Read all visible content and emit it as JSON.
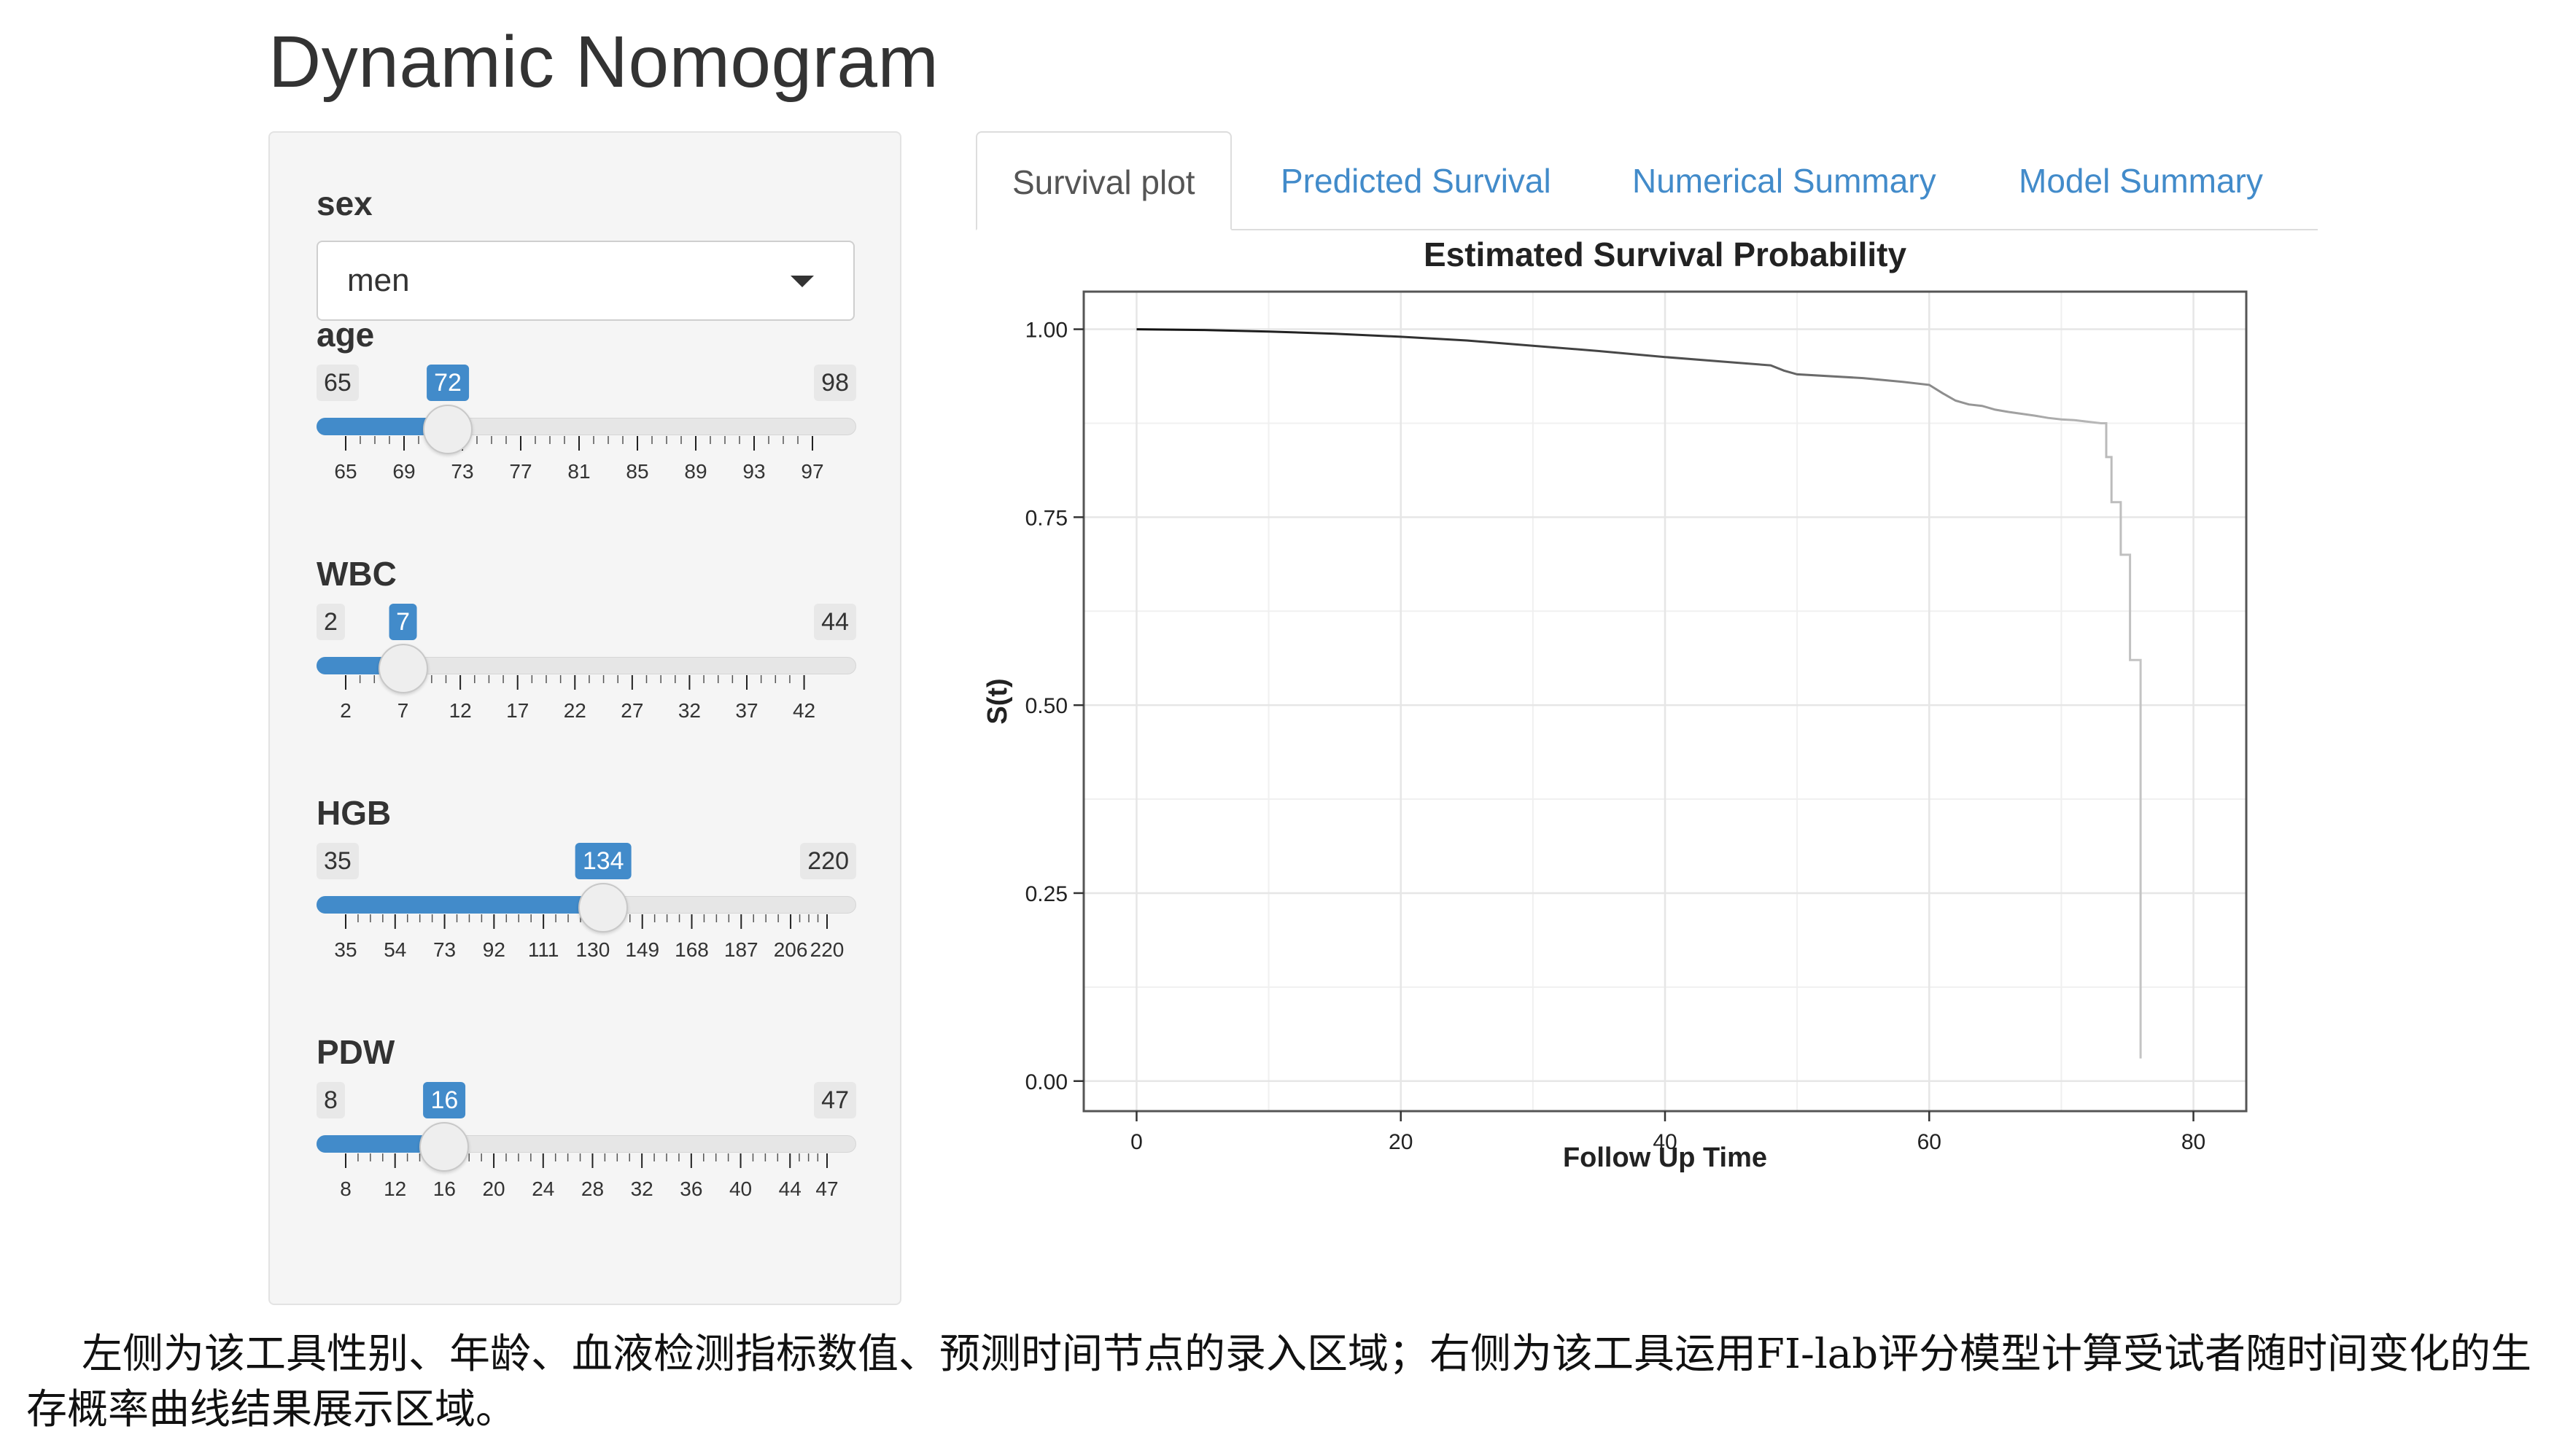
{
  "page": {
    "title": "Dynamic Nomogram"
  },
  "sidebar": {
    "sex": {
      "label": "sex",
      "value": "men"
    },
    "sliders": [
      {
        "key": "age",
        "label": "age",
        "min": 65,
        "max": 98,
        "value": 72,
        "tick_labels": [
          "65",
          "69",
          "73",
          "77",
          "81",
          "85",
          "89",
          "93",
          "97"
        ],
        "tick_values": [
          65,
          69,
          73,
          77,
          81,
          85,
          89,
          93,
          97
        ]
      },
      {
        "key": "wbc",
        "label": "WBC",
        "min": 2,
        "max": 44,
        "value": 7,
        "tick_labels": [
          "2",
          "7",
          "12",
          "17",
          "22",
          "27",
          "32",
          "37",
          "42"
        ],
        "tick_values": [
          2,
          7,
          12,
          17,
          22,
          27,
          32,
          37,
          42
        ]
      },
      {
        "key": "hgb",
        "label": "HGB",
        "min": 35,
        "max": 220,
        "value": 134,
        "tick_labels": [
          "35",
          "54",
          "73",
          "92",
          "111",
          "130",
          "149",
          "168",
          "187",
          "206",
          "220"
        ],
        "tick_values": [
          35,
          54,
          73,
          92,
          111,
          130,
          149,
          168,
          187,
          206,
          220
        ]
      },
      {
        "key": "pdw",
        "label": "PDW",
        "min": 8,
        "max": 47,
        "value": 16,
        "tick_labels": [
          "8",
          "12",
          "16",
          "20",
          "24",
          "28",
          "32",
          "36",
          "40",
          "44",
          "47"
        ],
        "tick_values": [
          8,
          12,
          16,
          20,
          24,
          28,
          32,
          36,
          40,
          44,
          47
        ]
      }
    ]
  },
  "tabs": [
    {
      "label": "Survival plot",
      "active": true
    },
    {
      "label": "Predicted Survival",
      "active": false
    },
    {
      "label": "Numerical Summary",
      "active": false
    },
    {
      "label": "Model Summary",
      "active": false
    }
  ],
  "chart_data": {
    "type": "line",
    "title": "Estimated Survival Probability",
    "xlabel": "Follow Up Time",
    "ylabel": "S(t)",
    "xlim": [
      -4,
      84
    ],
    "ylim": [
      -0.04,
      1.05
    ],
    "x_ticks": [
      0,
      20,
      40,
      60,
      80
    ],
    "y_ticks": [
      0.0,
      0.25,
      0.5,
      0.75,
      1.0
    ],
    "y_tick_labels": [
      "0.00",
      "0.25",
      "0.50",
      "0.75",
      "1.00"
    ],
    "grid": true,
    "series": [
      {
        "x": [
          0,
          5,
          10,
          15,
          20,
          25,
          30,
          35,
          40,
          45,
          48,
          49,
          50,
          55,
          58,
          60,
          61,
          62,
          63,
          64,
          65,
          66,
          68,
          69,
          70,
          71,
          72,
          73,
          73.4,
          73.4,
          73.8,
          73.8,
          74.5,
          74.5,
          75.2,
          75.2,
          76,
          76
        ],
        "y": [
          1.0,
          0.999,
          0.997,
          0.994,
          0.99,
          0.985,
          0.978,
          0.971,
          0.963,
          0.956,
          0.952,
          0.945,
          0.94,
          0.935,
          0.93,
          0.926,
          0.915,
          0.905,
          0.9,
          0.898,
          0.893,
          0.89,
          0.885,
          0.882,
          0.88,
          0.879,
          0.877,
          0.875,
          0.875,
          0.83,
          0.83,
          0.77,
          0.77,
          0.7,
          0.7,
          0.56,
          0.56,
          0.03
        ]
      }
    ]
  },
  "caption": "左侧为该工具性别、年龄、血液检测指标数值、预测时间节点的录入区域；右侧为该工具运用FI-lab评分模型计算受试者随时间变化的生存概率曲线结果展示区域。"
}
